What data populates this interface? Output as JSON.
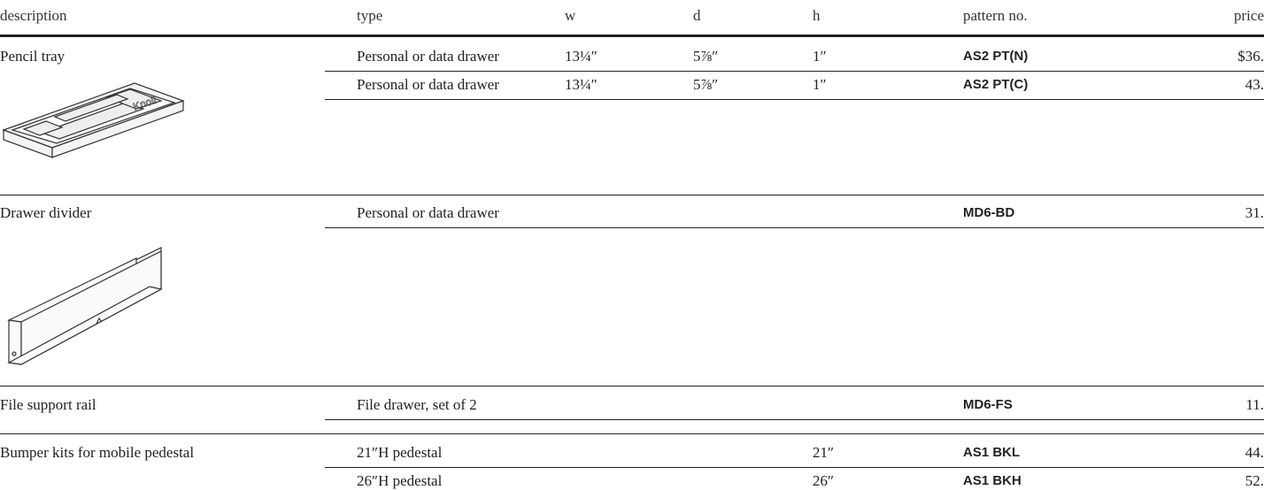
{
  "header": {
    "columns": [
      "description",
      "type",
      "w",
      "d",
      "h",
      "pattern no.",
      "price"
    ]
  },
  "sections": [
    {
      "description": "Pencil tray",
      "rows": [
        {
          "type": "Personal or data drawer",
          "w": "13¼″",
          "d": "5⅞″",
          "h": "1″",
          "pattern": "AS2 PT(N)",
          "price": "$36."
        },
        {
          "type": "Personal or data drawer",
          "w": "13¼″",
          "d": "5⅞″",
          "h": "1″",
          "pattern": "AS2 PT(C)",
          "price": "43."
        }
      ]
    },
    {
      "description": "Drawer divider",
      "rows": [
        {
          "type": "Personal or data drawer",
          "pattern": "MD6-BD",
          "price": "31."
        }
      ]
    },
    {
      "description": "File support rail",
      "rows": [
        {
          "type": "File drawer, set of 2",
          "pattern": "MD6-FS",
          "price": "11."
        }
      ]
    },
    {
      "description": "Bumper kits for mobile pedestal",
      "rows": [
        {
          "type": "21″H pedestal",
          "h": "21″",
          "pattern": "AS1 BKL",
          "price": "44."
        },
        {
          "type": "26″H pedestal",
          "h": "26″",
          "pattern": "AS1 BKH",
          "price": "52."
        }
      ]
    }
  ]
}
